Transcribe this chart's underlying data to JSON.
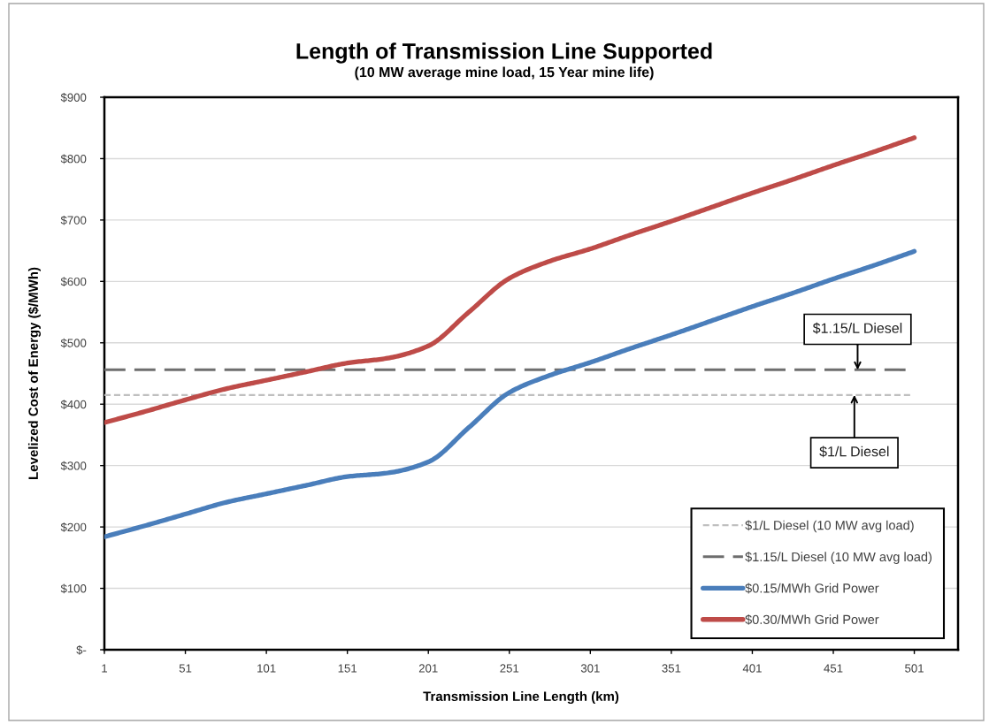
{
  "chart_data": {
    "type": "line",
    "title": "Length of Transmission Line Supported",
    "subtitle": "(10 MW average mine load, 15 Year mine life)",
    "xlabel": "Transmission Line Length (km)",
    "ylabel": "Levelized Cost of Energy ($/MWh)",
    "x": [
      1,
      26,
      51,
      76,
      101,
      126,
      151,
      176,
      201,
      226,
      251,
      276,
      301,
      326,
      351,
      376,
      401,
      426,
      451,
      476,
      501
    ],
    "xlim": [
      1,
      528
    ],
    "xticks": [
      1,
      51,
      101,
      151,
      201,
      251,
      301,
      351,
      401,
      451,
      501
    ],
    "ylim": [
      0,
      900
    ],
    "yticks": [
      {
        "value": 0,
        "label": "$-"
      },
      {
        "value": 100,
        "label": "$100"
      },
      {
        "value": 200,
        "label": "$200"
      },
      {
        "value": 300,
        "label": "$300"
      },
      {
        "value": 400,
        "label": "$400"
      },
      {
        "value": 500,
        "label": "$500"
      },
      {
        "value": 600,
        "label": "$600"
      },
      {
        "value": 700,
        "label": "$700"
      },
      {
        "value": 800,
        "label": "$800"
      },
      {
        "value": 900,
        "label": "$900"
      }
    ],
    "grid": "y",
    "legend": "bottom right",
    "marker": "none",
    "series": [
      {
        "name": "$1/L Diesel (10 MW avg load)",
        "color": "#bfbfbf",
        "line_style": "dotted",
        "x": [
          1,
          500
        ],
        "values": [
          415,
          415
        ]
      },
      {
        "name": "$1.15/L Diesel (10 MW avg load)",
        "color": "#6e6e6e",
        "line_style": "dashed",
        "x": [
          1,
          497
        ],
        "values": [
          456,
          456
        ]
      },
      {
        "name": "$0.15/MWh Grid Power",
        "color": "#4a7ebb",
        "line_style": "solid",
        "values": [
          184,
          202,
          221,
          240,
          254,
          268,
          282,
          288,
          306,
          362,
          419,
          447,
          468,
          491,
          513,
          536,
          559,
          581,
          604,
          626,
          649
        ]
      },
      {
        "name": "$0.30/MWh Grid Power",
        "color": "#be4b48",
        "line_style": "solid",
        "values": [
          370,
          388,
          407,
          425,
          439,
          453,
          467,
          475,
          495,
          550,
          605,
          633,
          653,
          676,
          698,
          721,
          744,
          766,
          789,
          811,
          834
        ]
      }
    ],
    "annotations": [
      {
        "text": "$1.15/L Diesel",
        "x": 466,
        "y": 456
      },
      {
        "text": "$1/L Diesel",
        "x": 464,
        "y": 415
      }
    ]
  }
}
